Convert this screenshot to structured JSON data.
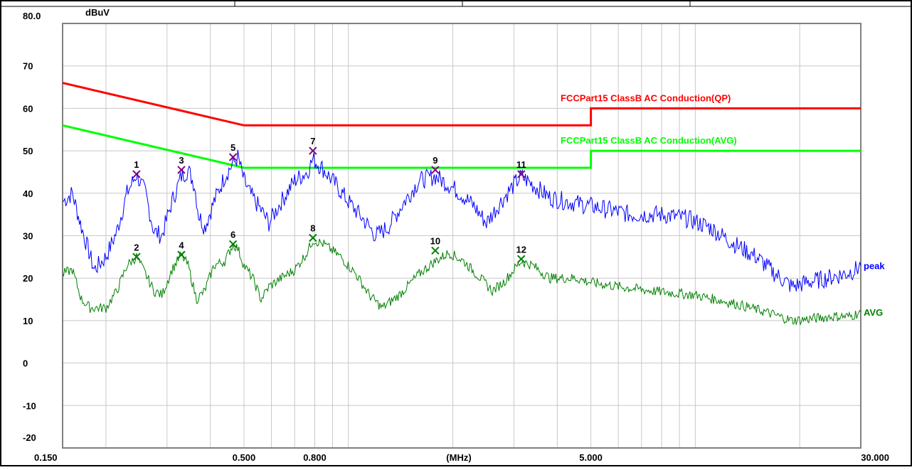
{
  "chart_data": {
    "type": "line",
    "title": "",
    "ylabel": "dBuV",
    "xlabel": "(MHz)",
    "x_scale": "log",
    "xlim": [
      0.15,
      30
    ],
    "ylim": [
      -20,
      80
    ],
    "grid": true,
    "x_tick_labels": [
      "0.150",
      "0.500",
      "0.800",
      "(MHz)",
      "5.000",
      "30.000"
    ],
    "x_tick_values": [
      0.15,
      0.5,
      0.8,
      2.0,
      5.0,
      30.0
    ],
    "y_ticks": [
      80,
      70,
      60,
      50,
      40,
      30,
      20,
      10,
      0,
      -10,
      -20
    ],
    "y_tick_labels": [
      "80.0",
      "70",
      "60",
      "50",
      "40",
      "30",
      "20",
      "10",
      "0",
      "-10",
      "-20"
    ],
    "limits": [
      {
        "name": "FCCPart15 ClassB AC Conduction(QP)",
        "color": "#ff0000",
        "points": [
          [
            0.15,
            66
          ],
          [
            0.5,
            56
          ],
          [
            5.0,
            56
          ],
          [
            5.0,
            60
          ],
          [
            30.0,
            60
          ]
        ]
      },
      {
        "name": "FCCPart15 ClassB AC Conduction(AVG)",
        "color": "#00ff00",
        "points": [
          [
            0.15,
            56
          ],
          [
            0.5,
            46
          ],
          [
            5.0,
            46
          ],
          [
            5.0,
            50
          ],
          [
            30.0,
            50
          ]
        ]
      }
    ],
    "series": [
      {
        "name": "peak",
        "color": "#0000ff",
        "points": [
          [
            0.15,
            38
          ],
          [
            0.16,
            40
          ],
          [
            0.17,
            32
          ],
          [
            0.185,
            22
          ],
          [
            0.2,
            25
          ],
          [
            0.215,
            31
          ],
          [
            0.23,
            40
          ],
          [
            0.245,
            44.5
          ],
          [
            0.26,
            40
          ],
          [
            0.275,
            31
          ],
          [
            0.29,
            30
          ],
          [
            0.31,
            38
          ],
          [
            0.33,
            44
          ],
          [
            0.345,
            45.5
          ],
          [
            0.36,
            42
          ],
          [
            0.37,
            35
          ],
          [
            0.385,
            32
          ],
          [
            0.41,
            38
          ],
          [
            0.44,
            44
          ],
          [
            0.465,
            47
          ],
          [
            0.48,
            48.5
          ],
          [
            0.5,
            43
          ],
          [
            0.52,
            40
          ],
          [
            0.56,
            36
          ],
          [
            0.59,
            33
          ],
          [
            0.64,
            38
          ],
          [
            0.7,
            43
          ],
          [
            0.76,
            45
          ],
          [
            0.79,
            48
          ],
          [
            0.84,
            46
          ],
          [
            0.92,
            42
          ],
          [
            1.0,
            38
          ],
          [
            1.1,
            34
          ],
          [
            1.2,
            30
          ],
          [
            1.3,
            32
          ],
          [
            1.45,
            38
          ],
          [
            1.6,
            43
          ],
          [
            1.78,
            44
          ],
          [
            1.95,
            42
          ],
          [
            2.1,
            40
          ],
          [
            2.3,
            37
          ],
          [
            2.5,
            33
          ],
          [
            2.75,
            38
          ],
          [
            3.0,
            42
          ],
          [
            3.15,
            44
          ],
          [
            3.4,
            42
          ],
          [
            3.8,
            39
          ],
          [
            4.3,
            38
          ],
          [
            5.0,
            37
          ],
          [
            5.7,
            36
          ],
          [
            6.5,
            35
          ],
          [
            8.0,
            35
          ],
          [
            9.5,
            34
          ],
          [
            11.0,
            32
          ],
          [
            13.0,
            28
          ],
          [
            15.0,
            25
          ],
          [
            17.0,
            21
          ],
          [
            19.0,
            18
          ],
          [
            21.0,
            19
          ],
          [
            24.0,
            20
          ],
          [
            27.0,
            21
          ],
          [
            29.0,
            22
          ],
          [
            30.0,
            23
          ]
        ]
      },
      {
        "name": "AVG",
        "color": "#008000",
        "points": [
          [
            0.15,
            21
          ],
          [
            0.16,
            22
          ],
          [
            0.17,
            15
          ],
          [
            0.18,
            13
          ],
          [
            0.2,
            13
          ],
          [
            0.215,
            17
          ],
          [
            0.23,
            23
          ],
          [
            0.245,
            25
          ],
          [
            0.26,
            21
          ],
          [
            0.275,
            17
          ],
          [
            0.29,
            16
          ],
          [
            0.31,
            22
          ],
          [
            0.33,
            25.5
          ],
          [
            0.345,
            23
          ],
          [
            0.365,
            15
          ],
          [
            0.385,
            17
          ],
          [
            0.41,
            23
          ],
          [
            0.44,
            24
          ],
          [
            0.465,
            28
          ],
          [
            0.48,
            27
          ],
          [
            0.5,
            23
          ],
          [
            0.53,
            20
          ],
          [
            0.56,
            15
          ],
          [
            0.59,
            18
          ],
          [
            0.64,
            20
          ],
          [
            0.7,
            22
          ],
          [
            0.76,
            26
          ],
          [
            0.79,
            29
          ],
          [
            0.85,
            28
          ],
          [
            0.95,
            25
          ],
          [
            1.05,
            21
          ],
          [
            1.15,
            16
          ],
          [
            1.25,
            13
          ],
          [
            1.4,
            16
          ],
          [
            1.6,
            21
          ],
          [
            1.78,
            24
          ],
          [
            1.95,
            26
          ],
          [
            2.15,
            24
          ],
          [
            2.4,
            20
          ],
          [
            2.6,
            17
          ],
          [
            2.8,
            19
          ],
          [
            3.0,
            22
          ],
          [
            3.15,
            24
          ],
          [
            3.4,
            23
          ],
          [
            3.8,
            20
          ],
          [
            4.5,
            20
          ],
          [
            5.0,
            19
          ],
          [
            6.0,
            18
          ],
          [
            7.5,
            17
          ],
          [
            10.0,
            16
          ],
          [
            13.0,
            14
          ],
          [
            16.0,
            12
          ],
          [
            19.0,
            10
          ],
          [
            22.0,
            10.5
          ],
          [
            25.0,
            11
          ],
          [
            28.0,
            11
          ],
          [
            30.0,
            12
          ]
        ]
      }
    ],
    "markers": [
      {
        "label": "1",
        "x": 0.245,
        "y": 44.5,
        "color": "#800080"
      },
      {
        "label": "2",
        "x": 0.245,
        "y": 25.0,
        "color": "#008000"
      },
      {
        "label": "3",
        "x": 0.33,
        "y": 45.5,
        "color": "#800080"
      },
      {
        "label": "4",
        "x": 0.33,
        "y": 25.5,
        "color": "#008000"
      },
      {
        "label": "5",
        "x": 0.465,
        "y": 48.5,
        "color": "#800080"
      },
      {
        "label": "6",
        "x": 0.465,
        "y": 28.0,
        "color": "#008000"
      },
      {
        "label": "7",
        "x": 0.79,
        "y": 50.0,
        "color": "#800080"
      },
      {
        "label": "8",
        "x": 0.79,
        "y": 29.5,
        "color": "#008000"
      },
      {
        "label": "9",
        "x": 1.78,
        "y": 45.5,
        "color": "#800080"
      },
      {
        "label": "10",
        "x": 1.78,
        "y": 26.5,
        "color": "#008000"
      },
      {
        "label": "11",
        "x": 3.15,
        "y": 44.5,
        "color": "#800080"
      },
      {
        "label": "12",
        "x": 3.15,
        "y": 24.5,
        "color": "#008000"
      }
    ],
    "legend_placement": "right-end labels"
  }
}
